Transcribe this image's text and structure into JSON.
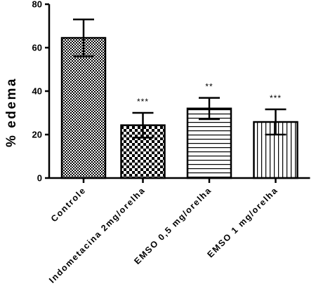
{
  "chart_data": {
    "type": "bar",
    "title": "",
    "xlabel": "",
    "ylabel": "% edema",
    "ylim": [
      0,
      80
    ],
    "yticks": [
      0,
      20,
      40,
      60,
      80
    ],
    "grid": false,
    "categories": [
      "Controle",
      "Indometacina 2mg/orelha",
      "EMSO 0,5 mg/orelha",
      "EMSO 1 mg/orelha"
    ],
    "values": [
      64.5,
      24.3,
      32.0,
      25.8
    ],
    "errors": [
      8.5,
      5.7,
      4.9,
      5.8
    ],
    "significance": [
      "",
      "***",
      "**",
      "***"
    ],
    "fill_patterns": [
      "checker-fine",
      "checker-coarse",
      "horizontal-lines",
      "vertical-lines"
    ],
    "bar_fill_color": "#ffffff",
    "bar_edge_color": "#000000"
  }
}
